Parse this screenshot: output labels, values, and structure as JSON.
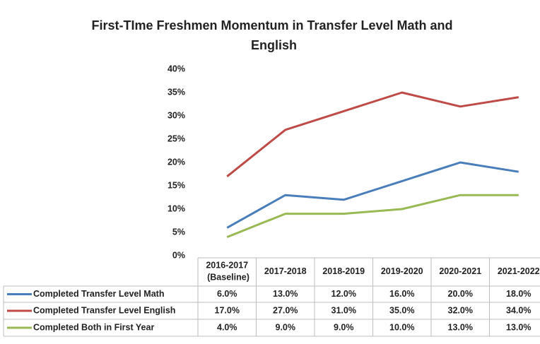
{
  "chart_data": {
    "type": "line",
    "title": "First-TIme Freshmen Momentum in Transfer Level Math and English",
    "categories": [
      "2016-2017 (Baseline)",
      "2017-2018",
      "2018-2019",
      "2019-2020",
      "2020-2021",
      "2021-2022"
    ],
    "series": [
      {
        "name": "Completed Transfer Level Math",
        "color": "#4a7ebb",
        "values": [
          6,
          13,
          12,
          16,
          20,
          18
        ],
        "value_labels": [
          "6.0%",
          "13.0%",
          "12.0%",
          "16.0%",
          "20.0%",
          "18.0%"
        ]
      },
      {
        "name": "Completed Transfer Level English",
        "color": "#be4b48",
        "values": [
          17,
          27,
          31,
          35,
          32,
          34
        ],
        "value_labels": [
          "17.0%",
          "27.0%",
          "31.0%",
          "35.0%",
          "32.0%",
          "34.0%"
        ]
      },
      {
        "name": "Completed Both in First Year",
        "color": "#98b954",
        "values": [
          4,
          9,
          9,
          10,
          13,
          13
        ],
        "value_labels": [
          "4.0%",
          "9.0%",
          "9.0%",
          "10.0%",
          "13.0%",
          "13.0%"
        ]
      }
    ],
    "ylim": [
      0,
      40
    ],
    "yticks": [
      {
        "value": 0,
        "label": "0%"
      },
      {
        "value": 5,
        "label": "5%"
      },
      {
        "value": 10,
        "label": "10%"
      },
      {
        "value": 15,
        "label": "15%"
      },
      {
        "value": 20,
        "label": "20%"
      },
      {
        "value": 25,
        "label": "25%"
      },
      {
        "value": 30,
        "label": "30%"
      },
      {
        "value": 35,
        "label": "35%"
      },
      {
        "value": 40,
        "label": "40%"
      }
    ],
    "grid": false
  }
}
